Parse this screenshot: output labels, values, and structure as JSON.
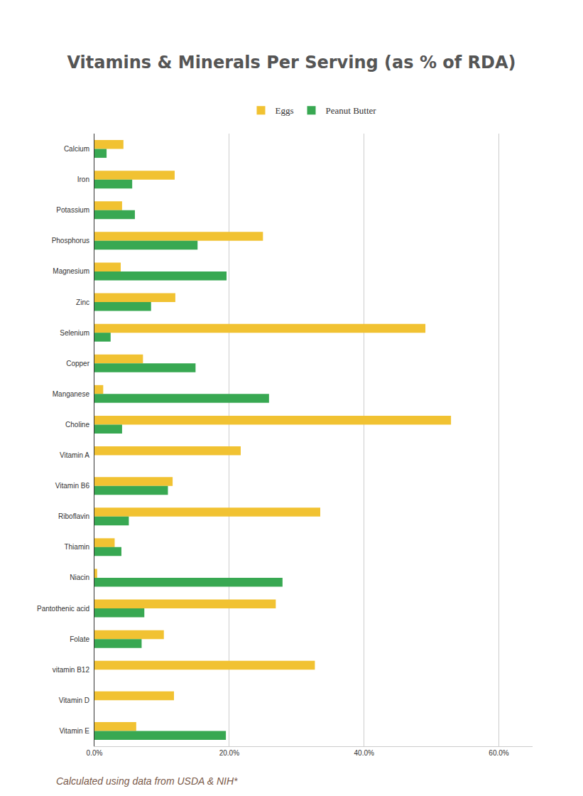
{
  "chart_data": {
    "type": "bar",
    "orientation": "horizontal",
    "title": "Vitamins & Minerals Per Serving (as % of RDA)",
    "annotations": [
      "Calculated using data from USDA & NIH*"
    ],
    "categories": [
      "Calcium",
      "Iron",
      "Potassium",
      "Phosphorus",
      "Magnesium",
      "Zinc",
      "Selenium",
      "Copper",
      "Manganese",
      "Choline",
      "Vitamin A",
      "Vitamin B6",
      "Riboflavin",
      "Thiamin",
      "Niacin",
      "Pantothenic acid",
      "Folate",
      "vitamin B12",
      "Vitamin D",
      "Vitamin E"
    ],
    "series": [
      {
        "name": "Eggs",
        "color": "#f1c232",
        "values": [
          4.3,
          11.9,
          4.1,
          25.0,
          3.9,
          12.0,
          49.1,
          7.2,
          1.3,
          52.9,
          21.7,
          11.6,
          33.5,
          3.0,
          0.4,
          26.9,
          10.3,
          32.7,
          11.8,
          6.2
        ]
      },
      {
        "name": "Peanut Butter",
        "color": "#38a852",
        "values": [
          1.8,
          5.6,
          6.0,
          15.3,
          19.6,
          8.4,
          2.4,
          15.0,
          25.9,
          4.1,
          0,
          10.9,
          5.1,
          4.0,
          27.9,
          7.4,
          7.0,
          0,
          0,
          19.5
        ]
      }
    ],
    "xlim": [
      0,
      65
    ],
    "xticks": [
      {
        "value": 0,
        "label": "0.0%"
      },
      {
        "value": 20,
        "label": "20.0%"
      },
      {
        "value": 40,
        "label": "40.0%"
      },
      {
        "value": 60,
        "label": "60.0%"
      }
    ],
    "grid": true,
    "legend": "top"
  }
}
